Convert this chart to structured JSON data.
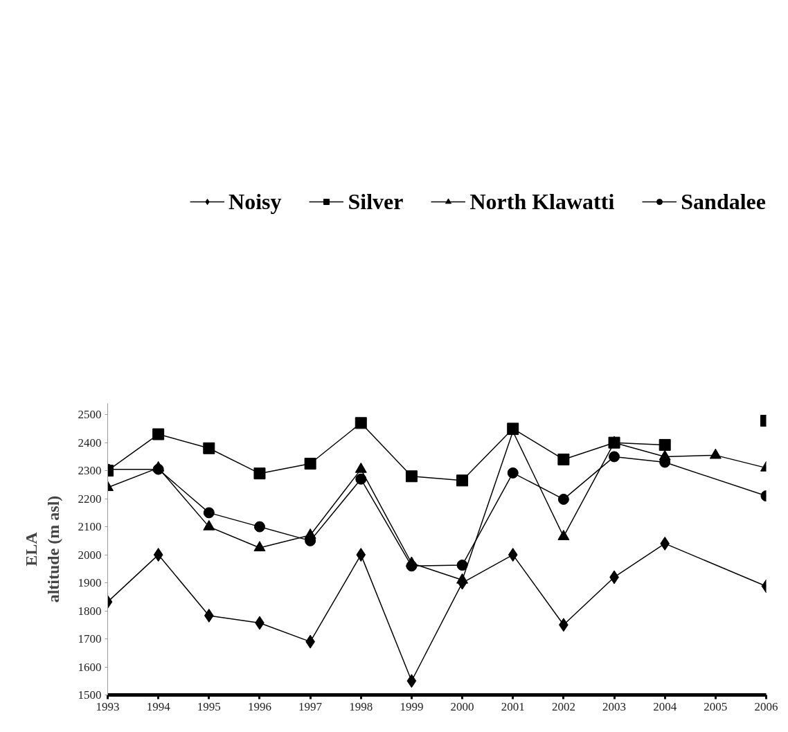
{
  "chart_data": {
    "type": "line",
    "ylabel": "ELA\naltitude (m asl)",
    "x": [
      1993,
      1994,
      1995,
      1996,
      1997,
      1998,
      1999,
      2000,
      2001,
      2002,
      2003,
      2004,
      2005,
      2006
    ],
    "xlim": [
      1993,
      2006
    ],
    "xticks": [
      1993,
      1994,
      1995,
      1996,
      1997,
      1998,
      1999,
      2000,
      2001,
      2002,
      2003,
      2004,
      2005,
      2006
    ],
    "ylim": [
      1500,
      2540
    ],
    "yticks": [
      1500,
      1600,
      1700,
      1800,
      1900,
      2000,
      2100,
      2200,
      2300,
      2400,
      2500
    ],
    "grid": false,
    "legend": "top",
    "line_style": "solid",
    "series": [
      {
        "name": "Noisy",
        "color": "#000000",
        "marker": "diamond",
        "x": [
          1993,
          1994,
          1995,
          1996,
          1997,
          1998,
          1999,
          2000,
          2001,
          2002,
          2003,
          2004,
          2006
        ],
        "values": [
          1832,
          2000,
          1783,
          1757,
          1690,
          2000,
          1550,
          1900,
          2000,
          1750,
          1920,
          2040,
          1888
        ]
      },
      {
        "name": "Silver",
        "color": "#000000",
        "marker": "square",
        "values": [
          2300,
          2430,
          2380,
          2290,
          2325,
          2470,
          2280,
          2265,
          2450,
          2340,
          2400,
          2392,
          null,
          2478
        ]
      },
      {
        "name": "North Klawatti",
        "color": "#000000",
        "marker": "triangle",
        "values": [
          2240,
          2310,
          2100,
          2025,
          2070,
          2305,
          1970,
          1910,
          2440,
          2065,
          2400,
          2350,
          2355,
          2310
        ]
      },
      {
        "name": "Sandalee",
        "color": "#000000",
        "marker": "circle",
        "x": [
          1993,
          1994,
          1995,
          1996,
          1997,
          1998,
          1999,
          2000,
          2001,
          2002,
          2003,
          2004,
          2006
        ],
        "values": [
          2305,
          2305,
          2150,
          2100,
          2050,
          2270,
          1960,
          1963,
          2292,
          2198,
          2350,
          2330,
          2210
        ]
      }
    ]
  }
}
